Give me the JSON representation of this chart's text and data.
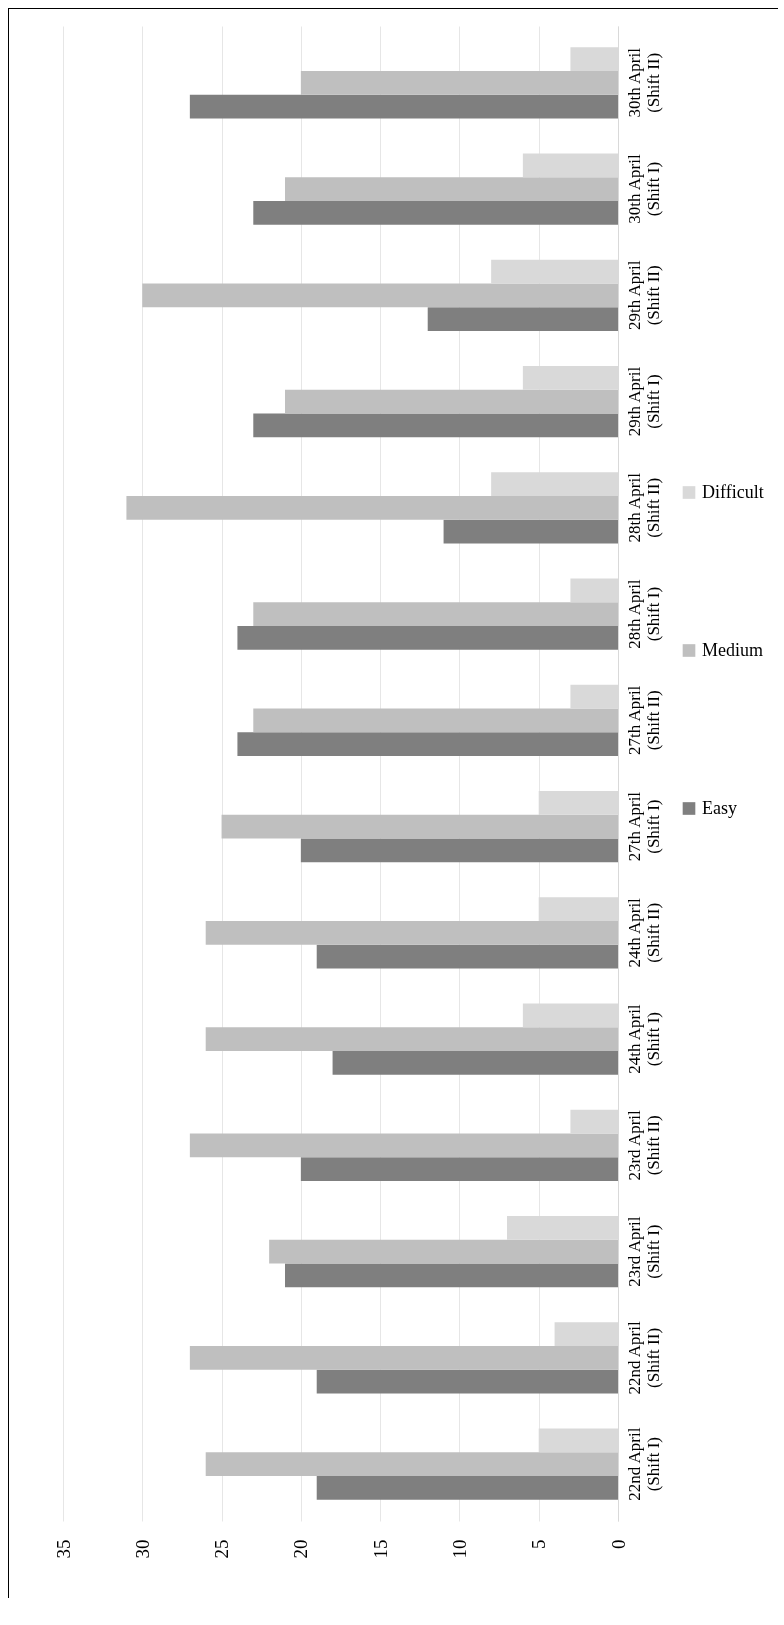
{
  "chart_data": {
    "type": "bar",
    "orientation": "horizontal",
    "categories": [
      "30th April\n(Shift II)",
      "30th April\n(Shift I)",
      "29th April\n(Shift II)",
      "29th April\n(Shift I)",
      "28th April\n(Shift II)",
      "28th April\n(Shift I)",
      "27th April\n(Shift II)",
      "27th April\n(Shift I)",
      "24th April\n(Shift II)",
      "24th April\n(Shift I)",
      "23rd April\n(Shift II)",
      "23rd April\n(Shift I)",
      "22nd April\n(Shift II)",
      "22nd April\n(Shift I)"
    ],
    "series": [
      {
        "name": "Easy",
        "color": "#7f7f7f",
        "values": [
          27,
          23,
          12,
          23,
          11,
          24,
          24,
          20,
          19,
          18,
          20,
          21,
          19,
          19
        ]
      },
      {
        "name": "Medium",
        "color": "#bfbfbf",
        "values": [
          20,
          21,
          30,
          21,
          31,
          23,
          23,
          25,
          26,
          26,
          27,
          22,
          27,
          26
        ]
      },
      {
        "name": "Difficult",
        "color": "#d9d9d9",
        "values": [
          3,
          6,
          8,
          6,
          8,
          3,
          3,
          5,
          5,
          6,
          3,
          7,
          4,
          5
        ]
      }
    ],
    "xlim": [
      35,
      0
    ],
    "xticks": [
      0,
      5,
      10,
      15,
      20,
      25,
      30,
      35
    ],
    "grid": "x",
    "legend": "right"
  }
}
